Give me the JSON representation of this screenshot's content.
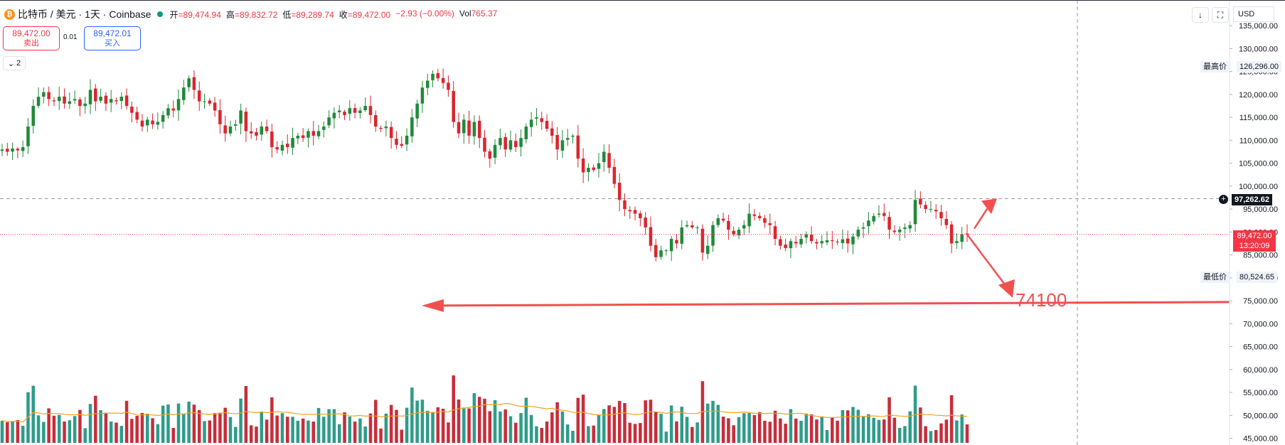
{
  "header": {
    "coin_glyph": "₿",
    "symbol": "比特币 / 美元 · 1天 · Coinbase",
    "ohlc": [
      {
        "key": "开",
        "value": "=89,474.94"
      },
      {
        "key": "高",
        "value": "=89,832.72"
      },
      {
        "key": "低",
        "value": "=89,289.74"
      },
      {
        "key": "收",
        "value": "=89,472.00"
      },
      {
        "key": "",
        "value": "−2.93 (−0.00%)"
      },
      {
        "key": "Vol",
        "value": "765.37"
      }
    ]
  },
  "trade": {
    "sell_price": "89,472.00",
    "sell_label": "卖出",
    "spread": "0.01",
    "buy_price": "89,472.01",
    "buy_label": "买入"
  },
  "layers": {
    "icon": "chevron-down-icon",
    "count": "2"
  },
  "toolbar": {
    "down_icon": "↓",
    "fullscreen_icon": "⛶",
    "currency": "USD"
  },
  "price_labels": {
    "high_key": "最高价",
    "high_value": "126,296.00",
    "low_key": "最低价",
    "low_value": "80,524.65",
    "crosshair_value": "97,262.62",
    "last_price": "89,472.00",
    "countdown": "13:20:09"
  },
  "annotation": {
    "target_text": "74100"
  },
  "colors": {
    "up": "#26a69a",
    "down": "#ef5350",
    "vol_up": "#2e9c8a",
    "vol_down": "#c62e3a",
    "ma": "#f7a21b",
    "annotation": "#f05050"
  },
  "chart_data": {
    "type": "candlestick",
    "yaxis_ticks": [
      45000,
      50000,
      55000,
      60000,
      65000,
      70000,
      75000,
      80000,
      85000,
      90000,
      95000,
      100000,
      105000,
      110000,
      115000,
      120000,
      125000,
      130000,
      135000
    ],
    "yaxis_tick_labels": [
      "45,000.00",
      "50,000.00",
      "55,000.00",
      "60,000.00",
      "65,000.00",
      "70,000.00",
      "75,000.00",
      "80,000.00",
      "85,000.00",
      "90,000.00",
      "95,000.00",
      "100,000.00",
      "105,000.00",
      "110,000.00",
      "115,000.00",
      "120,000.00",
      "125,000.00",
      "130,000.00",
      "135,000.00"
    ],
    "ylim": [
      44000,
      137500
    ],
    "crosshair_price": 97262.62,
    "last_price": 89472.0,
    "target_price": 74100,
    "closes": [
      108000,
      107500,
      108200,
      107800,
      108500,
      113000,
      117500,
      119500,
      120500,
      119000,
      118500,
      119500,
      118000,
      118500,
      119000,
      117500,
      118000,
      121000,
      118500,
      119500,
      118000,
      119000,
      118500,
      119500,
      117500,
      116000,
      114500,
      113000,
      114500,
      113500,
      114000,
      115500,
      117000,
      116500,
      119000,
      121500,
      123500,
      121000,
      118500,
      118500,
      118000,
      116500,
      113500,
      111500,
      113000,
      113500,
      116500,
      112000,
      111500,
      111000,
      113000,
      112000,
      108500,
      108000,
      109000,
      108500,
      110500,
      111000,
      110500,
      112000,
      111000,
      112000,
      113000,
      115000,
      116000,
      116500,
      115500,
      117000,
      116000,
      116500,
      117500,
      115500,
      113000,
      112500,
      113000,
      110500,
      109000,
      108800,
      111000,
      115000,
      118000,
      121500,
      123000,
      124500,
      123500,
      122500,
      121000,
      114000,
      111500,
      114500,
      111000,
      114000,
      110500,
      107500,
      106000,
      109000,
      110500,
      108000,
      110000,
      108500,
      110500,
      113000,
      114500,
      115000,
      114000,
      112500,
      111000,
      108000,
      110000,
      110500,
      111000,
      106000,
      103000,
      104000,
      103500,
      105000,
      107500,
      104000,
      100500,
      97000,
      95000,
      94500,
      94000,
      93000,
      91000,
      87000,
      84500,
      86000,
      86000,
      88500,
      87500,
      91000,
      91500,
      91000,
      91000,
      85500,
      87000,
      91500,
      93000,
      92500,
      90500,
      89500,
      90500,
      91500,
      94000,
      93500,
      93000,
      92000,
      91500,
      88500,
      87000,
      86500,
      88000,
      87500,
      88500,
      89500,
      88000,
      87500,
      88000,
      88200,
      88000,
      87800,
      88400,
      87500,
      89000,
      90500,
      91000,
      92500,
      93500,
      94000,
      93500,
      90500,
      90000,
      90500,
      91000,
      91500,
      97000,
      96000,
      95000,
      95000,
      94500,
      93000,
      91500,
      87500,
      88000,
      89500,
      89472
    ],
    "volume_scale_max": 100
  }
}
